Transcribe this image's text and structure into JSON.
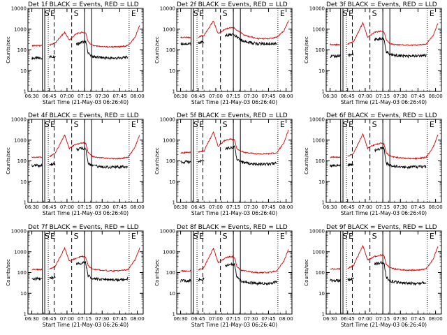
{
  "figure": {
    "title": "",
    "x_axis_label": "Start Time (21-May-03 06:26:40)",
    "y_axis_label": "Counts/sec",
    "x_tick_labels": [
      "06:30",
      "06:45",
      "07:00",
      "07:15",
      "07:30",
      "07:45",
      "08:00"
    ],
    "y_tick_labels": [
      "1",
      "10",
      "100",
      "1000",
      "10000"
    ],
    "colors": {
      "events": "#000000",
      "lld": "#e00000",
      "background": "#ffffff"
    }
  },
  "chart_data": [
    {
      "type": "line",
      "panel": 1,
      "title": "Det 1f BLACK = Events, RED = LLD",
      "xlabel": "Start Time (21-May-03 06:26:40)",
      "ylabel": "Counts/sec",
      "x_range": [
        "06:26:40",
        "08:05:00"
      ],
      "ylim": [
        1,
        10000
      ],
      "yscale": "log",
      "annotations": [
        "S",
        "E",
        "S",
        "E"
      ],
      "vertical_lines": {
        "solid": [
          "06:39",
          "06:41",
          "07:15",
          "07:21"
        ],
        "dashed": [
          "06:49",
          "07:04"
        ],
        "dotted": [
          "06:44",
          "07:53"
        ]
      },
      "x": [
        "06:30",
        "06:39",
        "06:41",
        "06:45",
        "06:50",
        "06:58",
        "07:02",
        "07:08",
        "07:13",
        "07:16",
        "07:18",
        "07:21",
        "07:25",
        "07:35",
        "07:45",
        "07:52",
        "07:58",
        "08:02"
      ],
      "series": [
        {
          "name": "Events",
          "color": "#000000",
          "values": [
            40,
            40,
            null,
            45,
            50,
            null,
            null,
            180,
            240,
            250,
            70,
            50,
            45,
            40,
            40,
            45,
            null,
            null
          ]
        },
        {
          "name": "LLD",
          "color": "#e00000",
          "values": [
            160,
            160,
            null,
            170,
            220,
            700,
            300,
            600,
            700,
            650,
            250,
            170,
            150,
            140,
            140,
            160,
            400,
            1500
          ]
        }
      ]
    },
    {
      "type": "line",
      "panel": 2,
      "title": "Det 2f BLACK = Events, RED = LLD",
      "xlabel": "Start Time (21-May-03 06:26:40)",
      "ylabel": "Counts/sec",
      "x_range": [
        "06:26:40",
        "08:05:00"
      ],
      "ylim": [
        1,
        10000
      ],
      "yscale": "log",
      "annotations": [
        "S",
        "E",
        "S",
        "E"
      ],
      "vertical_lines": {
        "solid": [
          "06:39",
          "06:41",
          "07:15",
          "07:21"
        ],
        "dashed": [
          "06:49",
          "07:04"
        ],
        "dotted": [
          "06:44",
          "07:53"
        ]
      },
      "x": [
        "06:30",
        "06:39",
        "06:41",
        "06:45",
        "06:50",
        "06:58",
        "07:02",
        "07:08",
        "07:13",
        "07:16",
        "07:18",
        "07:21",
        "07:25",
        "07:35",
        "07:45",
        "07:52",
        "07:58",
        "08:02"
      ],
      "series": [
        {
          "name": "Events",
          "color": "#000000",
          "values": [
            200,
            200,
            null,
            210,
            250,
            null,
            null,
            500,
            550,
            550,
            400,
            300,
            250,
            200,
            200,
            200,
            null,
            null
          ]
        },
        {
          "name": "LLD",
          "color": "#e00000",
          "values": [
            400,
            400,
            null,
            420,
            500,
            2500,
            600,
            1000,
            1200,
            1100,
            900,
            700,
            500,
            350,
            350,
            400,
            800,
            2500
          ]
        }
      ]
    },
    {
      "type": "line",
      "panel": 3,
      "title": "Det 3f BLACK = Events, RED = LLD",
      "xlabel": "Start Time (21-May-03 06:26:40)",
      "ylabel": "Counts/sec",
      "x_range": [
        "06:26:40",
        "08:05:00"
      ],
      "ylim": [
        1,
        10000
      ],
      "yscale": "log",
      "annotations": [
        "S",
        "E",
        "S",
        "E"
      ],
      "vertical_lines": {
        "solid": [
          "06:39",
          "06:41",
          "07:15",
          "07:21"
        ],
        "dashed": [
          "06:49",
          "07:04"
        ],
        "dotted": [
          "06:44",
          "07:53"
        ]
      },
      "x": [
        "06:30",
        "06:39",
        "06:41",
        "06:45",
        "06:50",
        "06:58",
        "07:02",
        "07:08",
        "07:13",
        "07:16",
        "07:18",
        "07:21",
        "07:25",
        "07:35",
        "07:45",
        "07:52",
        "07:58",
        "08:02"
      ],
      "series": [
        {
          "name": "Events",
          "color": "#000000",
          "values": [
            50,
            50,
            null,
            55,
            60,
            null,
            null,
            300,
            350,
            350,
            80,
            60,
            55,
            50,
            50,
            55,
            null,
            null
          ]
        },
        {
          "name": "LLD",
          "color": "#e00000",
          "values": [
            180,
            180,
            null,
            190,
            250,
            2000,
            400,
            700,
            800,
            750,
            300,
            200,
            180,
            170,
            170,
            190,
            500,
            2000
          ]
        }
      ]
    },
    {
      "type": "line",
      "panel": 4,
      "title": "Det 4f BLACK = Events, RED = LLD",
      "xlabel": "Start Time (21-May-03 06:26:40)",
      "ylabel": "Counts/sec",
      "x_range": [
        "06:26:40",
        "08:05:00"
      ],
      "ylim": [
        1,
        10000
      ],
      "yscale": "log",
      "annotations": [
        "S",
        "E",
        "S",
        "E"
      ],
      "vertical_lines": {
        "solid": [
          "06:39",
          "06:41",
          "07:15",
          "07:21"
        ],
        "dashed": [
          "06:49",
          "07:04"
        ],
        "dotted": [
          "06:44",
          "07:53"
        ]
      },
      "x": [
        "06:30",
        "06:39",
        "06:41",
        "06:45",
        "06:50",
        "06:58",
        "07:02",
        "07:08",
        "07:13",
        "07:16",
        "07:18",
        "07:21",
        "07:25",
        "07:35",
        "07:45",
        "07:52",
        "07:58",
        "08:02"
      ],
      "series": [
        {
          "name": "Events",
          "color": "#000000",
          "values": [
            60,
            60,
            null,
            65,
            70,
            null,
            null,
            350,
            400,
            400,
            80,
            60,
            55,
            50,
            50,
            55,
            null,
            null
          ]
        },
        {
          "name": "LLD",
          "color": "#e00000",
          "values": [
            150,
            150,
            null,
            160,
            230,
            1800,
            400,
            650,
            750,
            700,
            250,
            170,
            150,
            130,
            130,
            150,
            450,
            1800
          ]
        }
      ]
    },
    {
      "type": "line",
      "panel": 5,
      "title": "Det 5f BLACK = Events, RED = LLD",
      "xlabel": "Start Time (21-May-03 06:26:40)",
      "ylabel": "Counts/sec",
      "x_range": [
        "06:26:40",
        "08:05:00"
      ],
      "ylim": [
        1,
        10000
      ],
      "yscale": "log",
      "annotations": [
        "S",
        "E",
        "S",
        "E"
      ],
      "vertical_lines": {
        "solid": [
          "06:39",
          "06:41",
          "07:15",
          "07:21"
        ],
        "dashed": [
          "06:49",
          "07:04"
        ],
        "dotted": [
          "06:44",
          "07:53"
        ]
      },
      "x": [
        "06:30",
        "06:39",
        "06:41",
        "06:45",
        "06:50",
        "06:58",
        "07:02",
        "07:08",
        "07:13",
        "07:16",
        "07:18",
        "07:21",
        "07:25",
        "07:35",
        "07:45",
        "07:52",
        "07:58",
        "08:02"
      ],
      "series": [
        {
          "name": "Events",
          "color": "#000000",
          "values": [
            90,
            90,
            null,
            95,
            100,
            null,
            null,
            400,
            450,
            450,
            120,
            90,
            80,
            70,
            70,
            80,
            null,
            null
          ]
        },
        {
          "name": "LLD",
          "color": "#e00000",
          "values": [
            250,
            250,
            null,
            260,
            300,
            2500,
            500,
            1000,
            1100,
            1000,
            400,
            300,
            250,
            220,
            220,
            250,
            700,
            3000
          ]
        }
      ]
    },
    {
      "type": "line",
      "panel": 6,
      "title": "Det 6f BLACK = Events, RED = LLD",
      "xlabel": "Start Time (21-May-03 06:26:40)",
      "ylabel": "Counts/sec",
      "x_range": [
        "06:26:40",
        "08:05:00"
      ],
      "ylim": [
        1,
        10000
      ],
      "yscale": "log",
      "annotations": [
        "S",
        "E",
        "S",
        "E"
      ],
      "vertical_lines": {
        "solid": [
          "06:39",
          "06:41",
          "07:15",
          "07:21"
        ],
        "dashed": [
          "06:49",
          "07:04"
        ],
        "dotted": [
          "06:44",
          "07:53"
        ]
      },
      "x": [
        "06:30",
        "06:39",
        "06:41",
        "06:45",
        "06:50",
        "06:58",
        "07:02",
        "07:08",
        "07:13",
        "07:16",
        "07:18",
        "07:21",
        "07:25",
        "07:35",
        "07:45",
        "07:52",
        "07:58",
        "08:02"
      ],
      "series": [
        {
          "name": "Events",
          "color": "#000000",
          "values": [
            60,
            60,
            null,
            65,
            70,
            null,
            null,
            300,
            400,
            400,
            80,
            60,
            55,
            50,
            50,
            55,
            null,
            null
          ]
        },
        {
          "name": "LLD",
          "color": "#e00000",
          "values": [
            150,
            150,
            null,
            160,
            230,
            2000,
            400,
            600,
            700,
            650,
            250,
            170,
            150,
            130,
            130,
            150,
            450,
            1800
          ]
        }
      ]
    },
    {
      "type": "line",
      "panel": 7,
      "title": "Det 7f BLACK = Events, RED = LLD",
      "xlabel": "Start Time (21-May-03 06:26:40)",
      "ylabel": "Counts/sec",
      "x_range": [
        "06:26:40",
        "08:05:00"
      ],
      "ylim": [
        1,
        10000
      ],
      "yscale": "log",
      "annotations": [
        "S",
        "E",
        "S",
        "E"
      ],
      "vertical_lines": {
        "solid": [
          "06:39",
          "06:41",
          "07:15",
          "07:21"
        ],
        "dashed": [
          "06:49",
          "07:04"
        ],
        "dotted": [
          "06:44",
          "07:53"
        ]
      },
      "x": [
        "06:30",
        "06:39",
        "06:41",
        "06:45",
        "06:50",
        "06:58",
        "07:02",
        "07:08",
        "07:13",
        "07:16",
        "07:18",
        "07:21",
        "07:25",
        "07:35",
        "07:45",
        "07:52",
        "07:58",
        "08:02"
      ],
      "series": [
        {
          "name": "Events",
          "color": "#000000",
          "values": [
            50,
            50,
            null,
            55,
            60,
            null,
            null,
            250,
            300,
            300,
            70,
            55,
            50,
            45,
            45,
            50,
            null,
            null
          ]
        },
        {
          "name": "LLD",
          "color": "#e00000",
          "values": [
            140,
            140,
            null,
            150,
            200,
            1500,
            350,
            500,
            600,
            550,
            220,
            150,
            140,
            120,
            120,
            140,
            400,
            1500
          ]
        }
      ]
    },
    {
      "type": "line",
      "panel": 8,
      "title": "Det 8f BLACK = Events, RED = LLD",
      "xlabel": "Start Time (21-May-03 06:26:40)",
      "ylabel": "Counts/sec",
      "x_range": [
        "06:26:40",
        "08:05:00"
      ],
      "ylim": [
        1,
        10000
      ],
      "yscale": "log",
      "annotations": [
        "S",
        "E",
        "S",
        "E"
      ],
      "vertical_lines": {
        "solid": [
          "06:39",
          "06:41",
          "07:15",
          "07:21"
        ],
        "dashed": [
          "06:49",
          "07:04"
        ],
        "dotted": [
          "06:44",
          "07:53"
        ]
      },
      "x": [
        "06:30",
        "06:39",
        "06:41",
        "06:45",
        "06:50",
        "06:58",
        "07:02",
        "07:08",
        "07:13",
        "07:16",
        "07:18",
        "07:21",
        "07:25",
        "07:35",
        "07:45",
        "07:52",
        "07:58",
        "08:02"
      ],
      "series": [
        {
          "name": "Events",
          "color": "#000000",
          "values": [
            40,
            40,
            null,
            45,
            50,
            null,
            null,
            200,
            250,
            250,
            60,
            40,
            35,
            30,
            30,
            35,
            null,
            null
          ]
        },
        {
          "name": "LLD",
          "color": "#e00000",
          "values": [
            120,
            120,
            null,
            130,
            180,
            1500,
            300,
            500,
            600,
            550,
            200,
            130,
            120,
            100,
            100,
            120,
            350,
            1300
          ]
        }
      ]
    },
    {
      "type": "line",
      "panel": 9,
      "title": "Det 9f BLACK = Events, RED = LLD",
      "xlabel": "Start Time (21-May-03 06:26:40)",
      "ylabel": "Counts/sec",
      "x_range": [
        "06:26:40",
        "08:05:00"
      ],
      "ylim": [
        1,
        10000
      ],
      "yscale": "log",
      "annotations": [
        "S",
        "E",
        "S",
        "E"
      ],
      "vertical_lines": {
        "solid": [
          "06:39",
          "06:41",
          "07:15",
          "07:21"
        ],
        "dashed": [
          "06:49",
          "07:04"
        ],
        "dotted": [
          "06:44",
          "07:53"
        ]
      },
      "x": [
        "06:30",
        "06:39",
        "06:41",
        "06:45",
        "06:50",
        "06:58",
        "07:02",
        "07:08",
        "07:13",
        "07:16",
        "07:18",
        "07:21",
        "07:25",
        "07:35",
        "07:45",
        "07:52",
        "07:58",
        "08:02"
      ],
      "series": [
        {
          "name": "Events",
          "color": "#000000",
          "values": [
            40,
            40,
            null,
            45,
            50,
            null,
            null,
            250,
            300,
            300,
            60,
            40,
            35,
            30,
            30,
            35,
            null,
            null
          ]
        },
        {
          "name": "LLD",
          "color": "#e00000",
          "values": [
            150,
            150,
            null,
            160,
            220,
            2000,
            400,
            600,
            700,
            650,
            250,
            170,
            150,
            130,
            130,
            150,
            450,
            1800
          ]
        }
      ]
    }
  ]
}
